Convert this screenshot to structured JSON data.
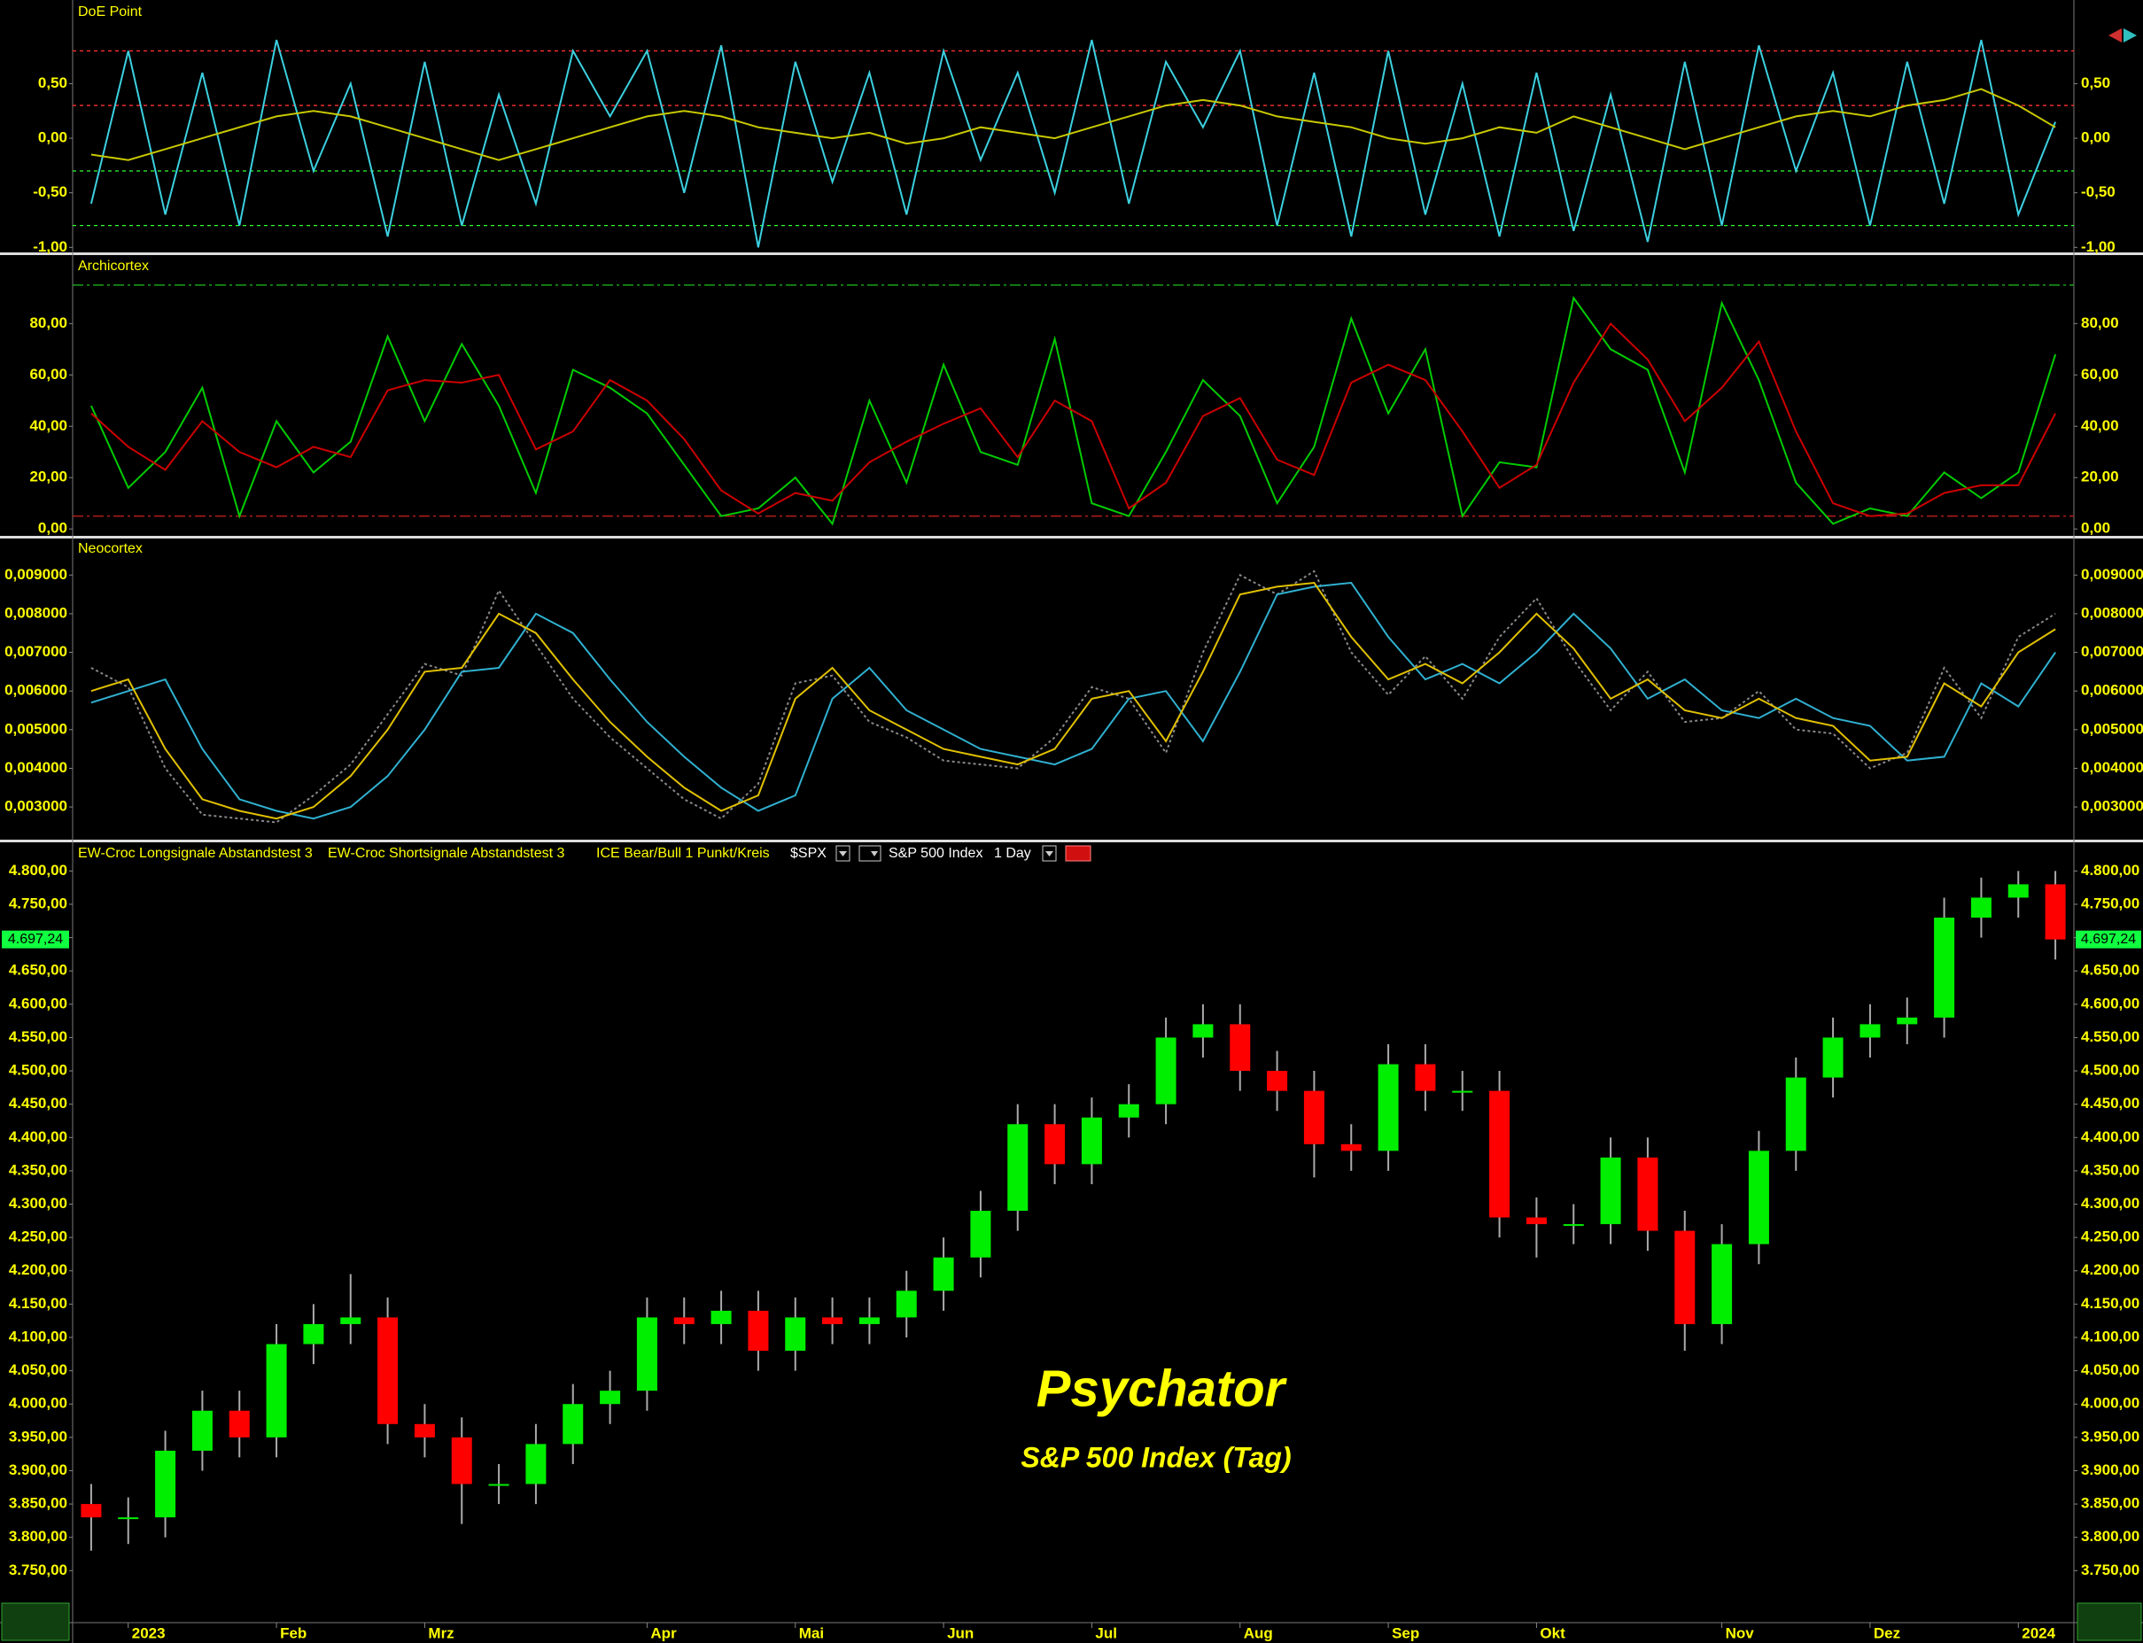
{
  "chart_data": [
    {
      "type": "line",
      "title": "DoE Point",
      "ylim": [
        -1.03,
        1.25
      ],
      "yticks": [
        {
          "value": 0.5,
          "label": "0,50"
        },
        {
          "value": 0,
          "label": "0,00"
        },
        {
          "value": -0.5,
          "label": "-0,50"
        },
        {
          "value": -1,
          "label": "-1,00"
        }
      ],
      "hlines": [
        {
          "value": 0.8,
          "color": "#ff3030"
        },
        {
          "value": 0.3,
          "color": "#ff3030"
        },
        {
          "value": -0.3,
          "color": "#30ff30"
        },
        {
          "value": -0.8,
          "color": "#30ff30"
        }
      ],
      "series": [
        {
          "color": "#3cd0e0",
          "values": [
            -0.6,
            0.8,
            -0.7,
            0.6,
            -0.8,
            0.9,
            -0.3,
            0.5,
            -0.9,
            0.7,
            -0.8,
            0.4,
            -0.6,
            0.8,
            0.2,
            0.8,
            -0.5,
            0.85,
            -1.0,
            0.7,
            -0.4,
            0.6,
            -0.7,
            0.8,
            -0.2,
            0.6,
            -0.5,
            0.9,
            -0.6,
            0.7,
            0.1,
            0.8,
            -0.8,
            0.6,
            -0.9,
            0.8,
            -0.7,
            0.5,
            -0.9,
            0.6,
            -0.85,
            0.4,
            -0.95,
            0.7,
            -0.8,
            0.85,
            -0.3,
            0.6,
            -0.8,
            0.7,
            -0.6,
            0.9,
            -0.7,
            0.15
          ]
        },
        {
          "color": "#c8c800",
          "values": [
            -0.15,
            -0.2,
            -0.1,
            0.0,
            0.1,
            0.2,
            0.25,
            0.2,
            0.1,
            0.0,
            -0.1,
            -0.2,
            -0.1,
            0.0,
            0.1,
            0.2,
            0.25,
            0.2,
            0.1,
            0.05,
            0.0,
            0.05,
            -0.05,
            0.0,
            0.1,
            0.05,
            0.0,
            0.1,
            0.2,
            0.3,
            0.35,
            0.3,
            0.2,
            0.15,
            0.1,
            0.0,
            -0.05,
            0.0,
            0.1,
            0.05,
            0.2,
            0.1,
            0.0,
            -0.1,
            0.0,
            0.1,
            0.2,
            0.25,
            0.2,
            0.3,
            0.35,
            0.45,
            0.3,
            0.1
          ]
        }
      ]
    },
    {
      "type": "line",
      "title": "Archicortex",
      "ylim": [
        -2,
        106
      ],
      "yticks": [
        {
          "value": 0,
          "label": "0,00"
        },
        {
          "value": 20,
          "label": "20,00"
        },
        {
          "value": 40,
          "label": "40,00"
        },
        {
          "value": 60,
          "label": "60,00"
        },
        {
          "value": 80,
          "label": "80,00"
        }
      ],
      "hlines": [
        {
          "value": 95,
          "color": "#20c020"
        },
        {
          "value": 5,
          "color": "#d02020"
        }
      ],
      "series": [
        {
          "color": "#00cc00",
          "values": [
            48,
            16,
            30,
            55,
            5,
            42,
            22,
            34,
            75,
            42,
            72,
            48,
            14,
            62,
            55,
            45,
            25,
            5,
            8,
            20,
            2,
            50,
            18,
            64,
            30,
            25,
            74,
            10,
            5,
            30,
            58,
            44,
            10,
            32,
            82,
            45,
            70,
            5,
            26,
            24,
            90,
            70,
            62,
            22,
            88,
            58,
            18,
            2,
            8,
            5,
            22,
            12,
            22,
            68
          ]
        },
        {
          "color": "#cc0000",
          "values": [
            45,
            32,
            23,
            42,
            30,
            24,
            32,
            28,
            54,
            58,
            57,
            60,
            31,
            38,
            58,
            50,
            35,
            15,
            6,
            14,
            11,
            26,
            34,
            41,
            47,
            28,
            50,
            42,
            8,
            18,
            44,
            51,
            27,
            21,
            57,
            64,
            58,
            38,
            16,
            25,
            57,
            80,
            66,
            42,
            55,
            73,
            38,
            10,
            5,
            6,
            14,
            17,
            17,
            45
          ]
        }
      ]
    },
    {
      "type": "line",
      "title": "Neocortex",
      "ylim": [
        0.0022,
        0.0099
      ],
      "yticks": [
        {
          "value": 0.009,
          "label": "0,009000"
        },
        {
          "value": 0.008,
          "label": "0,008000"
        },
        {
          "value": 0.007,
          "label": "0,007000"
        },
        {
          "value": 0.006,
          "label": "0,006000"
        },
        {
          "value": 0.005,
          "label": "0,005000"
        },
        {
          "value": 0.004,
          "label": "0,004000"
        },
        {
          "value": 0.003,
          "label": "0,003000"
        }
      ],
      "series": [
        {
          "color": "#888888",
          "dashed": true,
          "values": [
            0.0066,
            0.0061,
            0.004,
            0.0028,
            0.0027,
            0.0026,
            0.0033,
            0.0041,
            0.0054,
            0.0067,
            0.0064,
            0.0086,
            0.0072,
            0.0058,
            0.0048,
            0.004,
            0.0032,
            0.0027,
            0.0036,
            0.0062,
            0.0064,
            0.0052,
            0.0048,
            0.0042,
            0.0041,
            0.004,
            0.0048,
            0.0061,
            0.0058,
            0.0044,
            0.007,
            0.009,
            0.0085,
            0.0091,
            0.007,
            0.0059,
            0.0069,
            0.0058,
            0.0074,
            0.0084,
            0.0068,
            0.0055,
            0.0065,
            0.0052,
            0.0053,
            0.006,
            0.005,
            0.0049,
            0.004,
            0.0044,
            0.0066,
            0.0053,
            0.0074,
            0.008
          ]
        },
        {
          "color": "#30b0d0",
          "values": [
            0.0057,
            0.006,
            0.0063,
            0.0045,
            0.0032,
            0.0029,
            0.0027,
            0.003,
            0.0038,
            0.005,
            0.0065,
            0.0066,
            0.008,
            0.0075,
            0.0063,
            0.0052,
            0.0043,
            0.0035,
            0.0029,
            0.0033,
            0.0058,
            0.0066,
            0.0055,
            0.005,
            0.0045,
            0.0043,
            0.0041,
            0.0045,
            0.0058,
            0.006,
            0.0047,
            0.0065,
            0.0085,
            0.0087,
            0.0088,
            0.0074,
            0.0063,
            0.0067,
            0.0062,
            0.007,
            0.008,
            0.0071,
            0.0058,
            0.0063,
            0.0055,
            0.0053,
            0.0058,
            0.0053,
            0.0051,
            0.0042,
            0.0043,
            0.0062,
            0.0056,
            0.007
          ]
        },
        {
          "color": "#e0c000",
          "values": [
            0.006,
            0.0063,
            0.0045,
            0.0032,
            0.0029,
            0.0027,
            0.003,
            0.0038,
            0.005,
            0.0065,
            0.0066,
            0.008,
            0.0075,
            0.0063,
            0.0052,
            0.0043,
            0.0035,
            0.0029,
            0.0033,
            0.0058,
            0.0066,
            0.0055,
            0.005,
            0.0045,
            0.0043,
            0.0041,
            0.0045,
            0.0058,
            0.006,
            0.0047,
            0.0065,
            0.0085,
            0.0087,
            0.0088,
            0.0074,
            0.0063,
            0.0067,
            0.0062,
            0.007,
            0.008,
            0.0071,
            0.0058,
            0.0063,
            0.0055,
            0.0053,
            0.0058,
            0.0053,
            0.0051,
            0.0042,
            0.0043,
            0.0062,
            0.0056,
            0.007,
            0.0076
          ]
        }
      ]
    },
    {
      "type": "candlestick",
      "title": "S&P 500 Index",
      "symbol": "$SPX",
      "interval": "1 Day",
      "legend_items": [
        "EW-Croc Longsignale Abstandstest 3",
        "EW-Croc Shortsignale Abstandstest 3",
        "ICE Bear/Bull 1 Punkt/Kreis"
      ],
      "up_color": "#00ee00",
      "down_color": "#ff0000",
      "ylim": [
        3672,
        4843
      ],
      "yticks": [
        {
          "value": 3750,
          "label": "3.750,00"
        },
        {
          "value": 3800,
          "label": "3.800,00"
        },
        {
          "value": 3850,
          "label": "3.850,00"
        },
        {
          "value": 3900,
          "label": "3.900,00"
        },
        {
          "value": 3950,
          "label": "3.950,00"
        },
        {
          "value": 4000,
          "label": "4.000,00"
        },
        {
          "value": 4050,
          "label": "4.050,00"
        },
        {
          "value": 4100,
          "label": "4.100,00"
        },
        {
          "value": 4150,
          "label": "4.150,00"
        },
        {
          "value": 4200,
          "label": "4.200,00"
        },
        {
          "value": 4250,
          "label": "4.250,00"
        },
        {
          "value": 4300,
          "label": "4.300,00"
        },
        {
          "value": 4350,
          "label": "4.350,00"
        },
        {
          "value": 4400,
          "label": "4.400,00"
        },
        {
          "value": 4450,
          "label": "4.450,00"
        },
        {
          "value": 4500,
          "label": "4.500,00"
        },
        {
          "value": 4550,
          "label": "4.550,00"
        },
        {
          "value": 4600,
          "label": "4.600,00"
        },
        {
          "value": 4650,
          "label": "4.650,00"
        },
        {
          "value": 4700,
          "label": "4.700,00"
        },
        {
          "value": 4750,
          "label": "4.750,00"
        },
        {
          "value": 4800,
          "label": "4.800,00"
        }
      ],
      "last_price": {
        "value": 4697.24,
        "label": "4.697,24"
      },
      "categories": [
        null,
        "2023",
        null,
        null,
        null,
        "Feb",
        null,
        null,
        null,
        "Mrz",
        null,
        null,
        null,
        null,
        null,
        "Apr",
        null,
        null,
        null,
        "Mai",
        null,
        null,
        null,
        "Jun",
        null,
        null,
        null,
        "Jul",
        null,
        null,
        null,
        "Aug",
        null,
        null,
        null,
        "Sep",
        null,
        null,
        null,
        "Okt",
        null,
        null,
        null,
        null,
        "Nov",
        null,
        null,
        null,
        "Dez",
        null,
        null,
        null,
        "2024",
        null
      ],
      "open": [
        3850,
        3830,
        3830,
        3930,
        3990,
        3950,
        4090,
        4120,
        4130,
        3970,
        3950,
        3880,
        3880,
        3940,
        4000,
        4020,
        4130,
        4120,
        4140,
        4080,
        4130,
        4120,
        4130,
        4170,
        4220,
        4290,
        4420,
        4360,
        4430,
        4450,
        4550,
        4570,
        4500,
        4470,
        4390,
        4380,
        4510,
        4470,
        4470,
        4280,
        4270,
        4270,
        4370,
        4260,
        4120,
        4240,
        4380,
        4490,
        4550,
        4570,
        4580,
        4730,
        4760,
        4780
      ],
      "high": [
        3880,
        3860,
        3960,
        4020,
        4020,
        4120,
        4150,
        4195,
        4160,
        4000,
        3980,
        3910,
        3970,
        4030,
        4050,
        4160,
        4160,
        4170,
        4170,
        4160,
        4160,
        4160,
        4200,
        4250,
        4320,
        4450,
        4450,
        4460,
        4480,
        4580,
        4600,
        4600,
        4530,
        4500,
        4420,
        4540,
        4540,
        4500,
        4500,
        4310,
        4300,
        4400,
        4400,
        4290,
        4270,
        4410,
        4520,
        4580,
        4600,
        4610,
        4760,
        4790,
        4800,
        4800
      ],
      "low": [
        3780,
        3790,
        3800,
        3900,
        3920,
        3920,
        4060,
        4090,
        3940,
        3920,
        3820,
        3850,
        3850,
        3910,
        3970,
        3990,
        4090,
        4090,
        4050,
        4050,
        4090,
        4090,
        4100,
        4140,
        4190,
        4260,
        4330,
        4330,
        4400,
        4420,
        4520,
        4470,
        4440,
        4340,
        4350,
        4350,
        4440,
        4440,
        4250,
        4220,
        4240,
        4240,
        4230,
        4080,
        4090,
        4210,
        4350,
        4460,
        4520,
        4540,
        4550,
        4700,
        4730,
        4667
      ],
      "close": [
        3830,
        3830,
        3930,
        3990,
        3950,
        4090,
        4120,
        4130,
        3970,
        3950,
        3880,
        3880,
        3940,
        4000,
        4020,
        4130,
        4120,
        4140,
        4080,
        4130,
        4120,
        4130,
        4170,
        4220,
        4290,
        4420,
        4360,
        4430,
        4450,
        4550,
        4570,
        4500,
        4470,
        4390,
        4380,
        4510,
        4470,
        4470,
        4280,
        4270,
        4270,
        4370,
        4260,
        4120,
        4240,
        4380,
        4490,
        4550,
        4570,
        4580,
        4730,
        4760,
        4780,
        4697.24
      ]
    }
  ],
  "watermark": {
    "title": "Psychator",
    "subtitle": "S&P 500 Index (Tag)"
  }
}
